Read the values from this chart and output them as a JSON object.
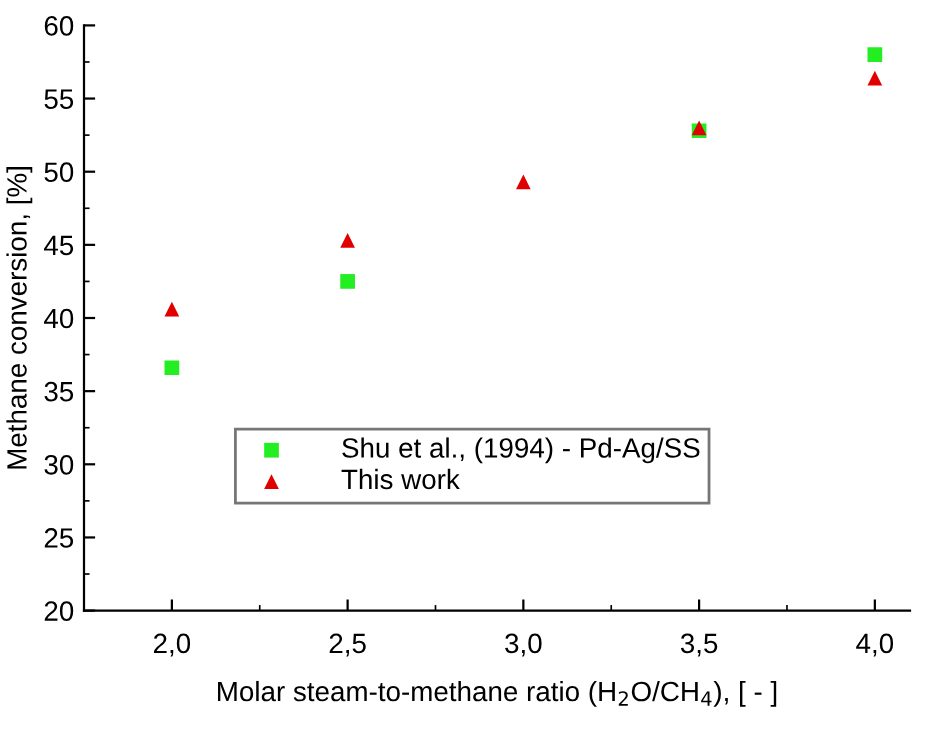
{
  "chart_data": {
    "type": "scatter",
    "xlabel": "Molar steam-to-methane ratio (H$_{2}$O/CH$_{4}$), [ - ]",
    "ylabel": "Methane conversion, [%]",
    "x": [
      2.0,
      2.5,
      3.0,
      3.5,
      4.0
    ],
    "series": [
      {
        "name": "Shu et al., (1994) - Pd-Ag/SS",
        "color": "#22ee22",
        "marker": "square",
        "values": [
          36.6,
          42.5,
          null,
          52.8,
          58.0
        ]
      },
      {
        "name": "This work",
        "color": "#e00000",
        "marker": "triangle",
        "values": [
          40.6,
          45.3,
          49.3,
          53.0,
          56.4
        ]
      }
    ],
    "xlim": [
      1.75,
      4.1
    ],
    "xticks": [
      {
        "value": 2.0,
        "label": "2,0"
      },
      {
        "value": 2.5,
        "label": "2,5"
      },
      {
        "value": 3.0,
        "label": "3,0"
      },
      {
        "value": 3.5,
        "label": "3,5"
      },
      {
        "value": 4.0,
        "label": "4,0"
      }
    ],
    "ylim": [
      20,
      60
    ],
    "yticks": [
      20,
      25,
      30,
      35,
      40,
      45,
      50,
      55,
      60
    ],
    "grid": false,
    "legend": "bottom"
  }
}
